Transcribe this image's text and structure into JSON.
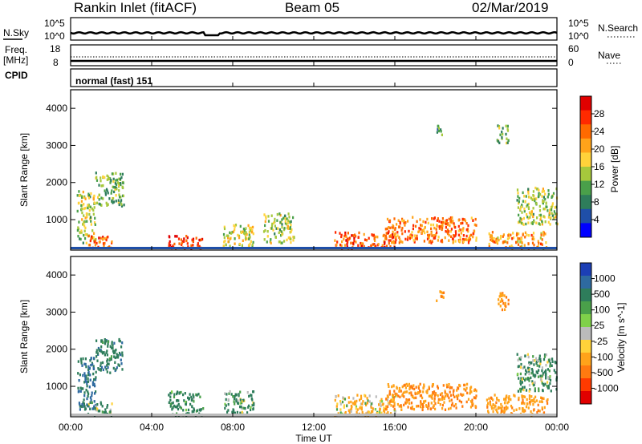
{
  "header": {
    "station": "Rankin Inlet (fitACF)",
    "beam": "Beam 05",
    "date": "02/Mar/2019"
  },
  "top_panels": {
    "nsky": {
      "left_label": "N.Sky",
      "right_label": "N.Search",
      "ticks_left": [
        "10^5",
        "10^0"
      ],
      "ticks_right": [
        "10^5",
        "10^0"
      ]
    },
    "freq": {
      "left_label_line1": "Freq.",
      "left_label_line2": "[MHz]",
      "right_label": "Nave",
      "ticks_left": [
        "18",
        "8"
      ],
      "ticks_right": [
        "60",
        "0"
      ]
    },
    "cpid": {
      "label": "CPID",
      "text": "normal (fast) 151"
    }
  },
  "x_axis": {
    "label": "Time UT",
    "ticks": [
      "00:00",
      "04:00",
      "08:00",
      "12:00",
      "16:00",
      "20:00",
      "00:00"
    ]
  },
  "chart_data": [
    {
      "type": "heatmap",
      "title": "",
      "xlabel": "Time UT",
      "ylabel": "Slant Range [km]",
      "x_range_hours": [
        0,
        24
      ],
      "ylim": [
        180,
        4500
      ],
      "y_ticks": [
        1000,
        2000,
        3000,
        4000
      ],
      "colorbar": {
        "label": "Power [dB]",
        "ticks": [
          "4",
          "8",
          "12",
          "16",
          "20",
          "24",
          "28"
        ],
        "colors": [
          "#0000ff",
          "#1f4fa8",
          "#2e7d5b",
          "#4aa04a",
          "#a6c83c",
          "#ffd23a",
          "#ffa31a",
          "#ff6a00",
          "#ff2a00",
          "#e10000"
        ]
      },
      "regions": [
        {
          "t": [
            0.3,
            1.2
          ],
          "r": [
            400,
            1800
          ],
          "v": 12
        },
        {
          "t": [
            1.2,
            2.6
          ],
          "r": [
            1400,
            2300
          ],
          "v": 10
        },
        {
          "t": [
            0.8,
            2.0
          ],
          "r": [
            250,
            600
          ],
          "v": 22
        },
        {
          "t": [
            4.8,
            6.5
          ],
          "r": [
            250,
            600
          ],
          "v": 24
        },
        {
          "t": [
            7.5,
            9.0
          ],
          "r": [
            300,
            900
          ],
          "v": 14
        },
        {
          "t": [
            9.5,
            11.0
          ],
          "r": [
            400,
            1200
          ],
          "v": 12
        },
        {
          "t": [
            13.0,
            16.0
          ],
          "r": [
            250,
            700
          ],
          "v": 22
        },
        {
          "t": [
            15.5,
            20.0
          ],
          "r": [
            400,
            1100
          ],
          "v": 20
        },
        {
          "t": [
            20.5,
            23.5
          ],
          "r": [
            250,
            700
          ],
          "v": 18
        },
        {
          "t": [
            22.0,
            24.0
          ],
          "r": [
            900,
            1900
          ],
          "v": 12
        },
        {
          "t": [
            18.0,
            18.4
          ],
          "r": [
            3300,
            3600
          ],
          "v": 8
        },
        {
          "t": [
            21.0,
            21.6
          ],
          "r": [
            3100,
            3600
          ],
          "v": 10
        }
      ]
    },
    {
      "type": "heatmap",
      "title": "",
      "xlabel": "Time UT",
      "ylabel": "Slant Range [km]",
      "x_range_hours": [
        0,
        24
      ],
      "ylim": [
        180,
        4500
      ],
      "y_ticks": [
        1000,
        2000,
        3000,
        4000
      ],
      "colorbar": {
        "label": "Velocity [m s^-1]",
        "ticks": [
          "1000",
          "500",
          "100",
          "25",
          "-25",
          "-100",
          "-500",
          "-1000"
        ],
        "colors": [
          "#1c3fb5",
          "#2e6aa0",
          "#2e7d5b",
          "#4aa04a",
          "#7fd04a",
          "#bbbbbb",
          "#ffd23a",
          "#ffa31a",
          "#ff7a10",
          "#ff3a00",
          "#e10000"
        ]
      },
      "regions": [
        {
          "t": [
            0.3,
            1.2
          ],
          "r": [
            400,
            1800
          ],
          "v": 300
        },
        {
          "t": [
            1.2,
            2.6
          ],
          "r": [
            1400,
            2300
          ],
          "v": 200
        },
        {
          "t": [
            0.8,
            2.0
          ],
          "r": [
            250,
            600
          ],
          "v": 50
        },
        {
          "t": [
            4.8,
            6.5
          ],
          "r": [
            250,
            900
          ],
          "v": 150
        },
        {
          "t": [
            7.5,
            9.0
          ],
          "r": [
            300,
            900
          ],
          "v": 100
        },
        {
          "t": [
            13.0,
            16.0
          ],
          "r": [
            250,
            800
          ],
          "v": -100
        },
        {
          "t": [
            15.5,
            20.0
          ],
          "r": [
            400,
            1100
          ],
          "v": -300
        },
        {
          "t": [
            20.5,
            23.5
          ],
          "r": [
            250,
            800
          ],
          "v": -200
        },
        {
          "t": [
            22.0,
            24.0
          ],
          "r": [
            900,
            1900
          ],
          "v": 100
        },
        {
          "t": [
            18.0,
            18.4
          ],
          "r": [
            3300,
            3600
          ],
          "v": -300
        },
        {
          "t": [
            21.0,
            21.6
          ],
          "r": [
            3100,
            3600
          ],
          "v": -300
        }
      ]
    }
  ]
}
